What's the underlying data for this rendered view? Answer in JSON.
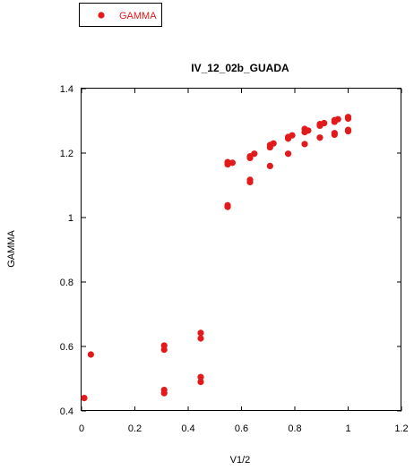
{
  "chart_data": {
    "type": "scatter",
    "title": "IV_12_02b_GUADA",
    "xlabel": "V1/2",
    "ylabel": "GAMMA",
    "xlim": [
      0,
      1.2
    ],
    "ylim": [
      0.4,
      1.4
    ],
    "xticks": [
      "0",
      "0.2",
      "0.4",
      "0.6",
      "0.8",
      "1",
      "1.2"
    ],
    "yticks": [
      "0.4",
      "0.6",
      "0.8",
      "1",
      "1.2",
      "1.4"
    ],
    "grid": false,
    "legend_position": "top-left",
    "series": [
      {
        "name": "GAMMA",
        "color": "#e31a1c",
        "points": [
          [
            0.01,
            0.44
          ],
          [
            0.035,
            0.575
          ],
          [
            0.31,
            0.465
          ],
          [
            0.31,
            0.455
          ],
          [
            0.31,
            0.59
          ],
          [
            0.31,
            0.603
          ],
          [
            0.447,
            0.49
          ],
          [
            0.447,
            0.505
          ],
          [
            0.447,
            0.625
          ],
          [
            0.447,
            0.642
          ],
          [
            0.548,
            1.033
          ],
          [
            0.548,
            1.038
          ],
          [
            0.548,
            1.165
          ],
          [
            0.548,
            1.172
          ],
          [
            0.566,
            1.17
          ],
          [
            0.632,
            1.11
          ],
          [
            0.632,
            1.117
          ],
          [
            0.632,
            1.185
          ],
          [
            0.632,
            1.19
          ],
          [
            0.648,
            1.198
          ],
          [
            0.707,
            1.16
          ],
          [
            0.707,
            1.218
          ],
          [
            0.707,
            1.225
          ],
          [
            0.72,
            1.23
          ],
          [
            0.775,
            1.198
          ],
          [
            0.775,
            1.245
          ],
          [
            0.775,
            1.25
          ],
          [
            0.79,
            1.255
          ],
          [
            0.837,
            1.228
          ],
          [
            0.837,
            1.265
          ],
          [
            0.837,
            1.275
          ],
          [
            0.85,
            1.27
          ],
          [
            0.894,
            1.248
          ],
          [
            0.894,
            1.285
          ],
          [
            0.894,
            1.29
          ],
          [
            0.91,
            1.293
          ],
          [
            0.949,
            1.257
          ],
          [
            0.949,
            1.262
          ],
          [
            0.949,
            1.297
          ],
          [
            0.949,
            1.302
          ],
          [
            0.962,
            1.305
          ],
          [
            1.0,
            1.268
          ],
          [
            1.0,
            1.272
          ],
          [
            1.0,
            1.307
          ],
          [
            1.0,
            1.312
          ]
        ]
      }
    ]
  }
}
